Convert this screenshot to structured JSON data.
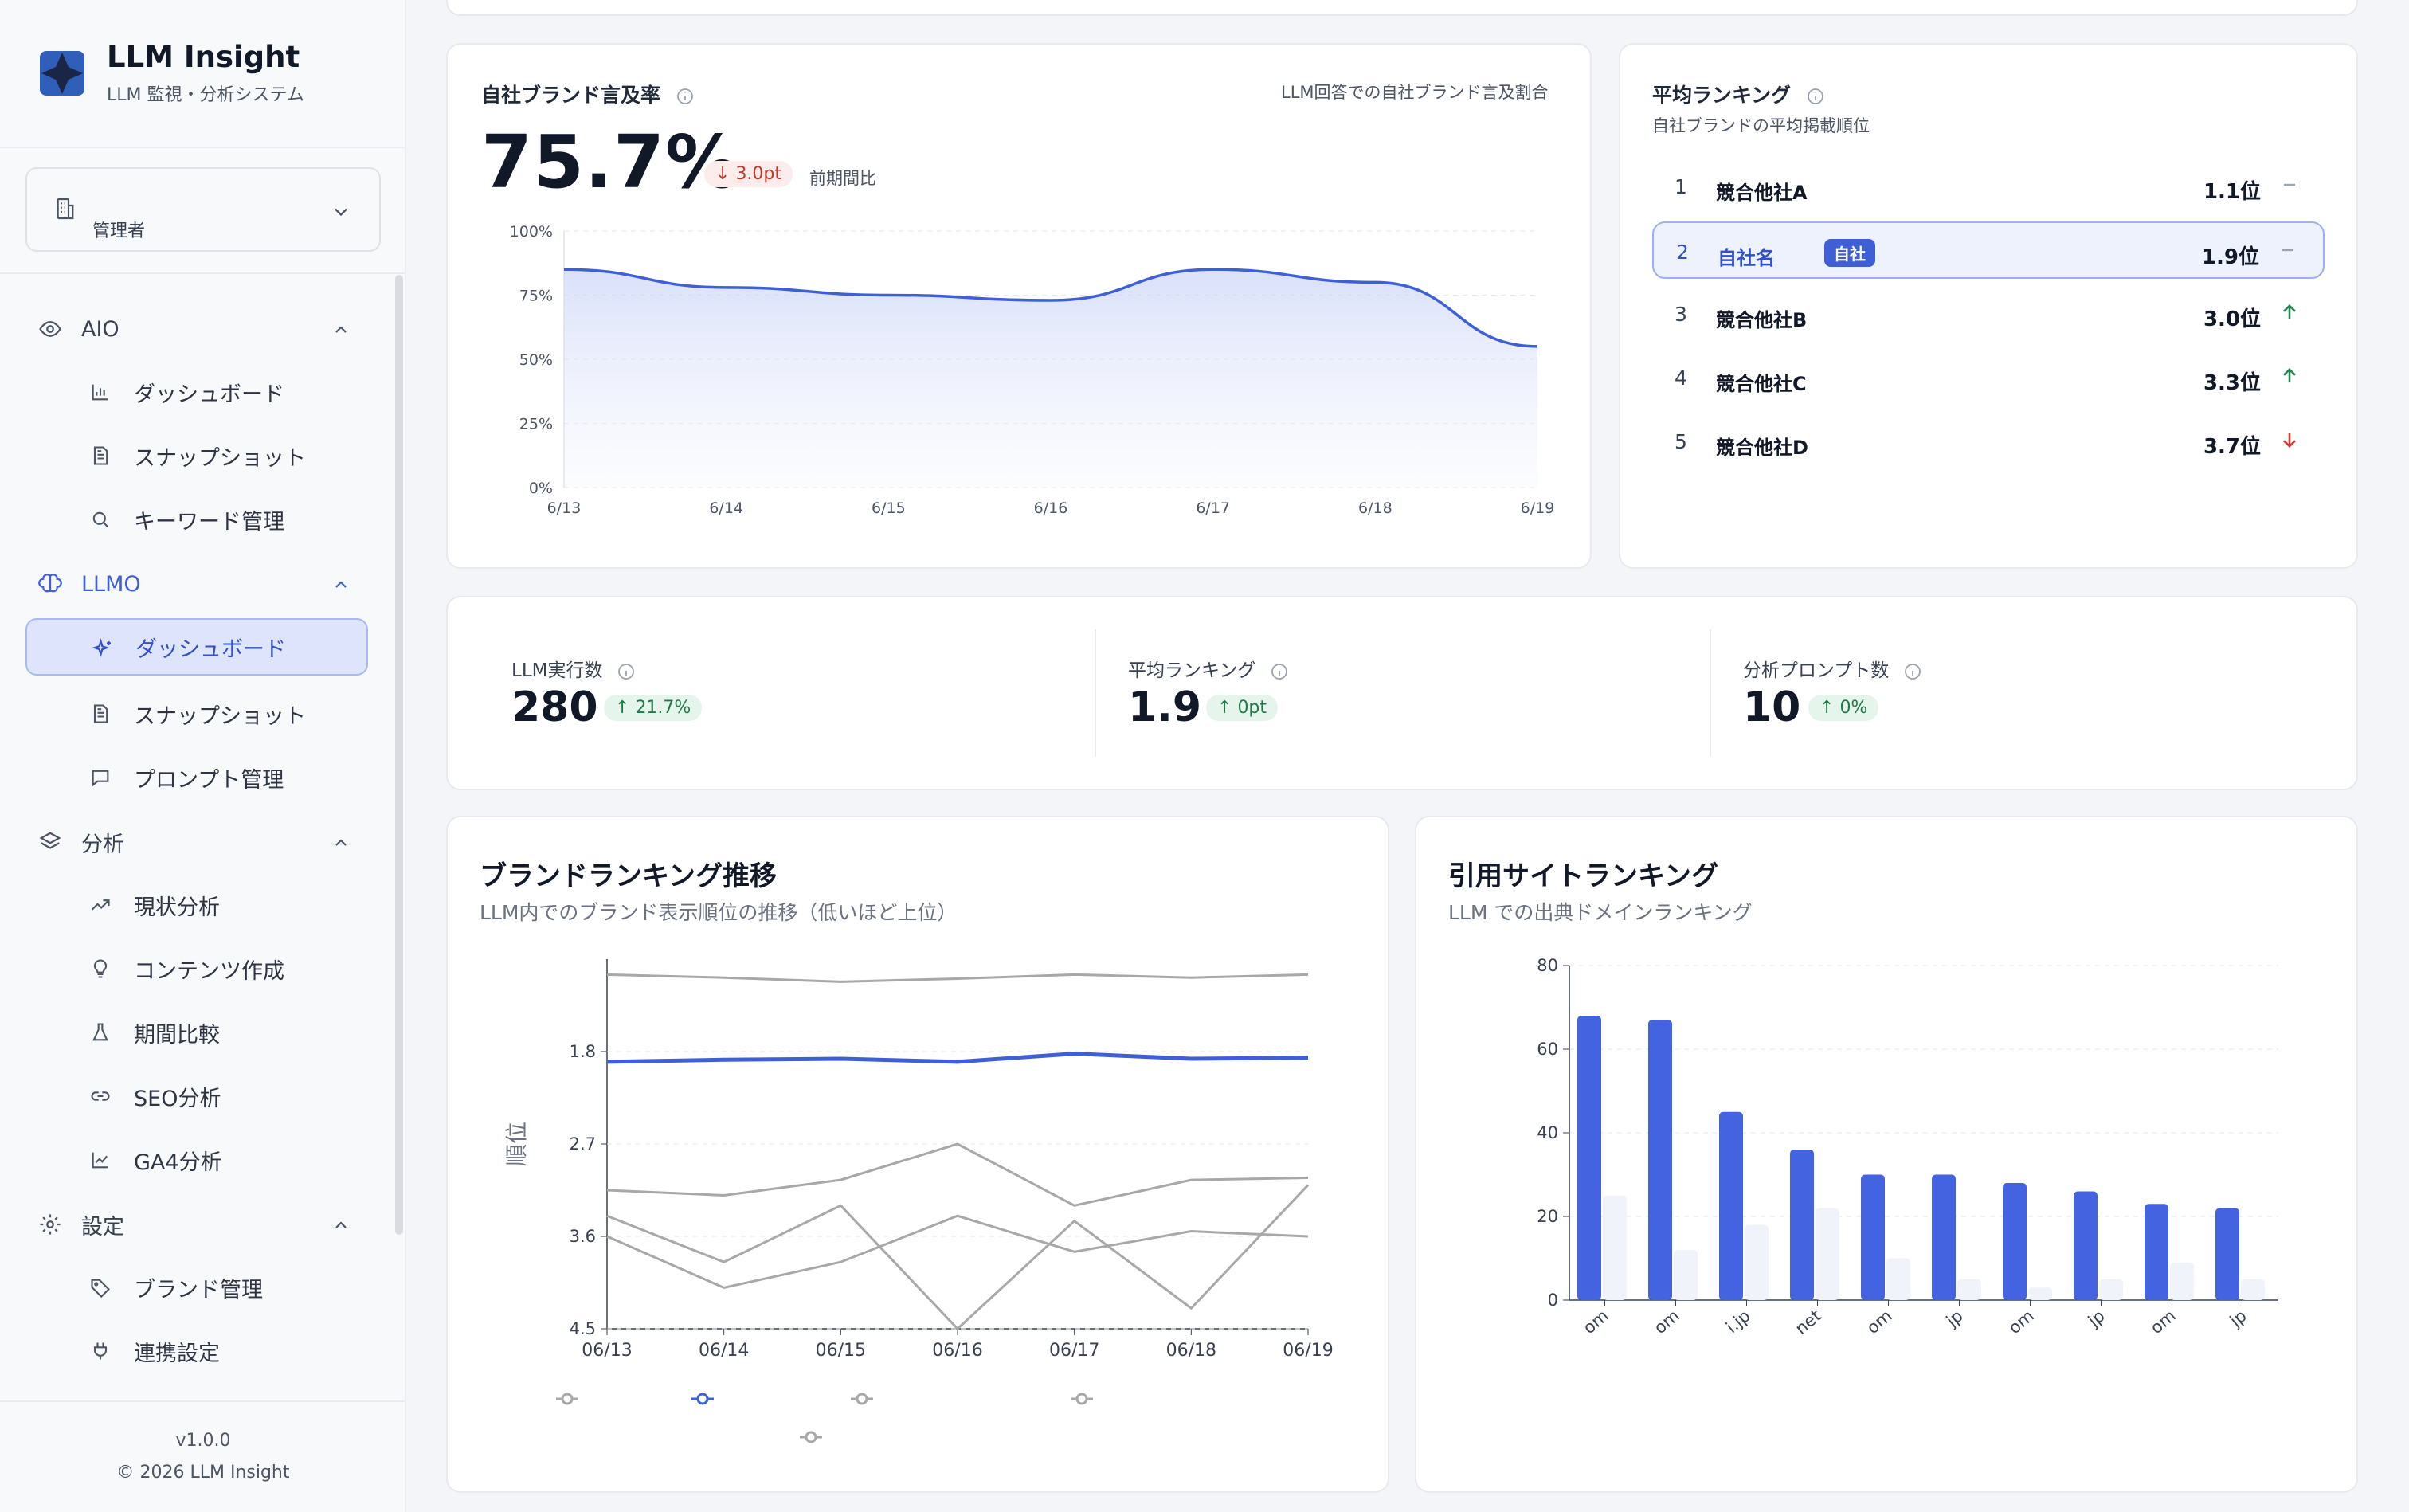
{
  "app": {
    "title": "LLM Insight",
    "subtitle": "LLM 監視・分析システム"
  },
  "role": {
    "label": "管理者"
  },
  "nav": {
    "aio": {
      "label": "AIO",
      "items": [
        "ダッシュボード",
        "スナップショット",
        "キーワード管理"
      ]
    },
    "llmo": {
      "label": "LLMO",
      "items": [
        "ダッシュボード",
        "スナップショット",
        "プロンプト管理"
      ],
      "active_index": 0
    },
    "analysis": {
      "label": "分析",
      "items": [
        "現状分析",
        "コンテンツ作成",
        "期間比較",
        "SEO分析",
        "GA4分析"
      ]
    },
    "settings": {
      "label": "設定",
      "items": [
        "ブランド管理",
        "連携設定"
      ]
    }
  },
  "footer": {
    "version": "v1.0.0",
    "copyright": "© 2026 LLM Insight"
  },
  "mention": {
    "title": "自社ブランド言及率",
    "note": "LLM回答での自社ブランド言及割合",
    "value": "75.7%",
    "delta": "3.0pt",
    "delta_label": "前期間比"
  },
  "avg_rank": {
    "title": "平均ランキング",
    "subtitle": "自社ブランドの平均掲載順位",
    "self_badge": "自社",
    "rows": [
      {
        "no": "1",
        "name": "競合他社A",
        "value": "1.1位",
        "trend": "flat"
      },
      {
        "no": "2",
        "name": "自社名",
        "value": "1.9位",
        "trend": "flat",
        "self": true
      },
      {
        "no": "3",
        "name": "競合他社B",
        "value": "3.0位",
        "trend": "up"
      },
      {
        "no": "4",
        "name": "競合他社C",
        "value": "3.3位",
        "trend": "up"
      },
      {
        "no": "5",
        "name": "競合他社D",
        "value": "3.7位",
        "trend": "down"
      }
    ]
  },
  "kpis": [
    {
      "label": "LLM実行数",
      "value": "280",
      "delta": "21.7%"
    },
    {
      "label": "平均ランキング",
      "value": "1.9",
      "delta": "0pt"
    },
    {
      "label": "分析プロンプト数",
      "value": "10",
      "delta": "0%"
    }
  ],
  "brand_trend": {
    "title": "ブランドランキング推移",
    "subtitle": "LLM内でのブランド表示順位の推移（低いほど上位）"
  },
  "citation": {
    "title": "引用サイトランキング",
    "subtitle": "LLM での出典ドメインランキング"
  },
  "colors": {
    "accent": "#3f5fd6",
    "bar_primary": "#4363e0",
    "bar_secondary": "#f1f3fb",
    "gray_line": "#a8a8a8",
    "up": "#1e8a4f",
    "down": "#d23b32"
  },
  "chart_data": [
    {
      "type": "area",
      "x": [
        "6/13",
        "6/14",
        "6/15",
        "6/16",
        "6/17",
        "6/18",
        "6/19"
      ],
      "series": [
        {
          "values": [
            85,
            78,
            75,
            73,
            85,
            80,
            55
          ]
        }
      ],
      "yticks": [
        "0%",
        "25%",
        "50%",
        "75%",
        "100%"
      ],
      "ylim": [
        0,
        100
      ]
    },
    {
      "type": "line",
      "x": [
        "06/13",
        "06/14",
        "06/15",
        "06/16",
        "06/17",
        "06/18",
        "06/19"
      ],
      "ylabel": "順位",
      "yticks": [
        "1.8",
        "2.7",
        "3.6",
        "4.5"
      ],
      "ylim": [
        0.9,
        4.5
      ],
      "series": [
        {
          "values": [
            1.05,
            1.08,
            1.12,
            1.09,
            1.05,
            1.08,
            1.05
          ],
          "highlight": false
        },
        {
          "values": [
            1.9,
            1.88,
            1.87,
            1.9,
            1.82,
            1.87,
            1.86
          ],
          "highlight": true
        },
        {
          "values": [
            3.15,
            3.2,
            3.05,
            2.7,
            3.3,
            3.05,
            3.03
          ],
          "highlight": false
        },
        {
          "values": [
            3.4,
            3.85,
            3.3,
            4.5,
            3.45,
            4.3,
            3.1
          ],
          "highlight": false
        },
        {
          "values": [
            3.6,
            4.1,
            3.85,
            3.4,
            3.75,
            3.55,
            3.6
          ],
          "highlight": false
        }
      ]
    },
    {
      "type": "bar",
      "categories": [
        "om",
        "om",
        "i.jp",
        "net",
        "om",
        "jp",
        "om",
        "jp",
        "om",
        "jp"
      ],
      "series": [
        {
          "values": [
            68,
            67,
            45,
            36,
            30,
            30,
            28,
            26,
            23,
            22
          ]
        },
        {
          "values": [
            25,
            12,
            18,
            22,
            10,
            5,
            3,
            5,
            9,
            5
          ]
        }
      ],
      "yticks": [
        "0",
        "20",
        "40",
        "60",
        "80"
      ],
      "ylim": [
        0,
        80
      ]
    }
  ]
}
